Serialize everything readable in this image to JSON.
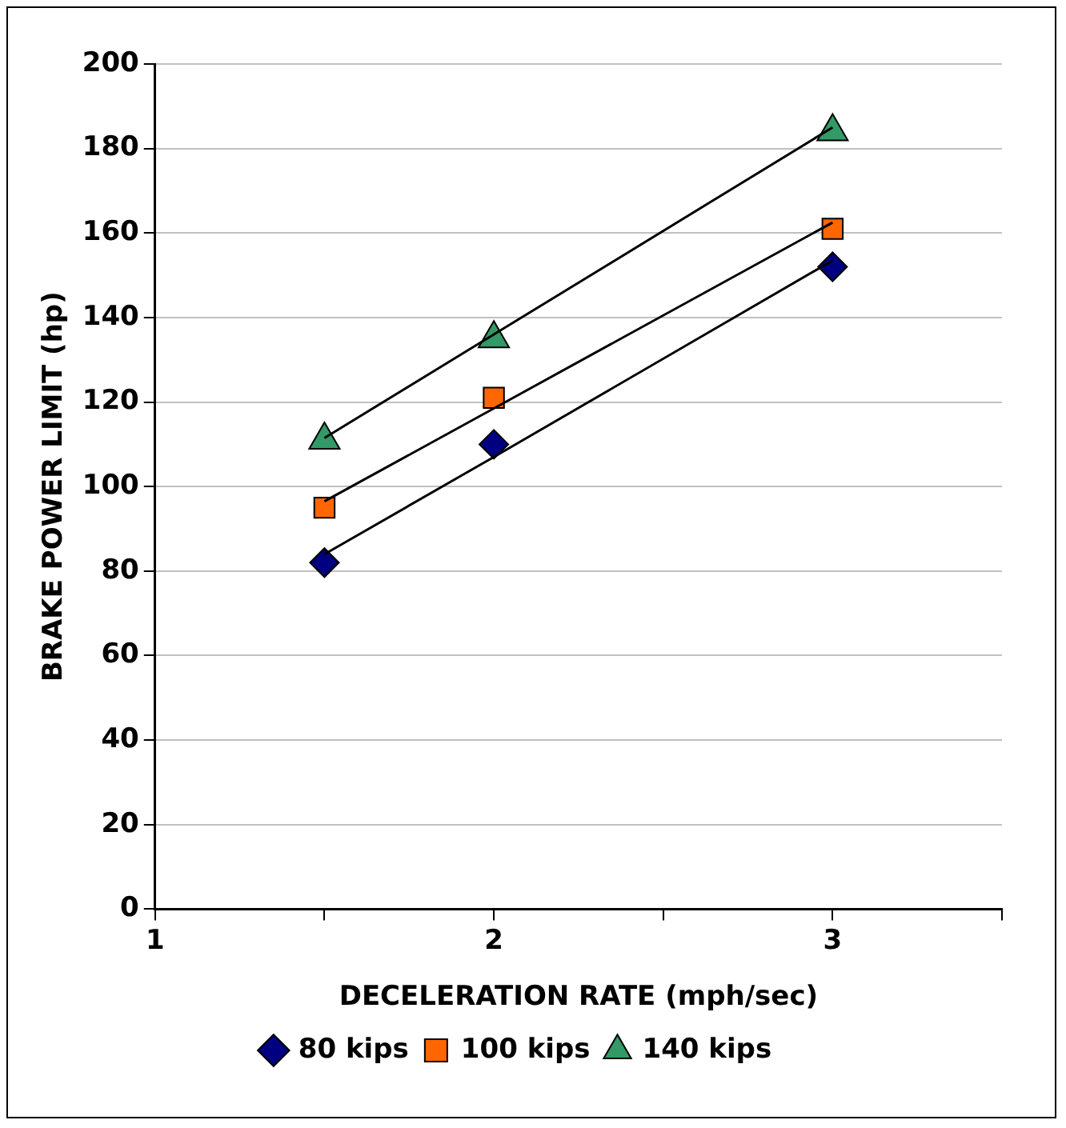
{
  "chart_data": {
    "type": "scatter",
    "xlabel": "DECELERATION RATE (mph/sec)",
    "ylabel": "BRAKE POWER LIMIT (hp)",
    "x": [
      1.5,
      2,
      3
    ],
    "series": [
      {
        "name": "80 kips",
        "color": "#000080",
        "marker": "diamond",
        "values": [
          82,
          110,
          152
        ]
      },
      {
        "name": "100 kips",
        "color": "#ff6600",
        "marker": "square",
        "values": [
          95,
          121,
          161
        ]
      },
      {
        "name": "140 kips",
        "color": "#339966",
        "marker": "triangle",
        "values": [
          111,
          135,
          184
        ]
      },
      {
        "type": "line",
        "color": "#000000",
        "values": [
          84,
          107,
          153.5
        ],
        "marker": "none"
      },
      {
        "type": "line",
        "color": "#000000",
        "values": [
          96.5,
          118.5,
          162.5
        ],
        "marker": "none"
      },
      {
        "type": "line",
        "color": "#000000",
        "values": [
          111.5,
          136,
          185
        ],
        "marker": "none"
      }
    ],
    "xlim": [
      1,
      3.5
    ],
    "xticks": [
      1,
      {
        "value": 1.5,
        "label": null
      },
      2,
      {
        "value": 2.5,
        "label": null
      },
      3,
      {
        "value": 3.5,
        "label": null
      }
    ],
    "ylim": [
      0,
      200
    ],
    "yticks": [
      0,
      20,
      40,
      60,
      80,
      100,
      120,
      140,
      160,
      180,
      200
    ],
    "grid": "y",
    "legend": "bottom"
  }
}
